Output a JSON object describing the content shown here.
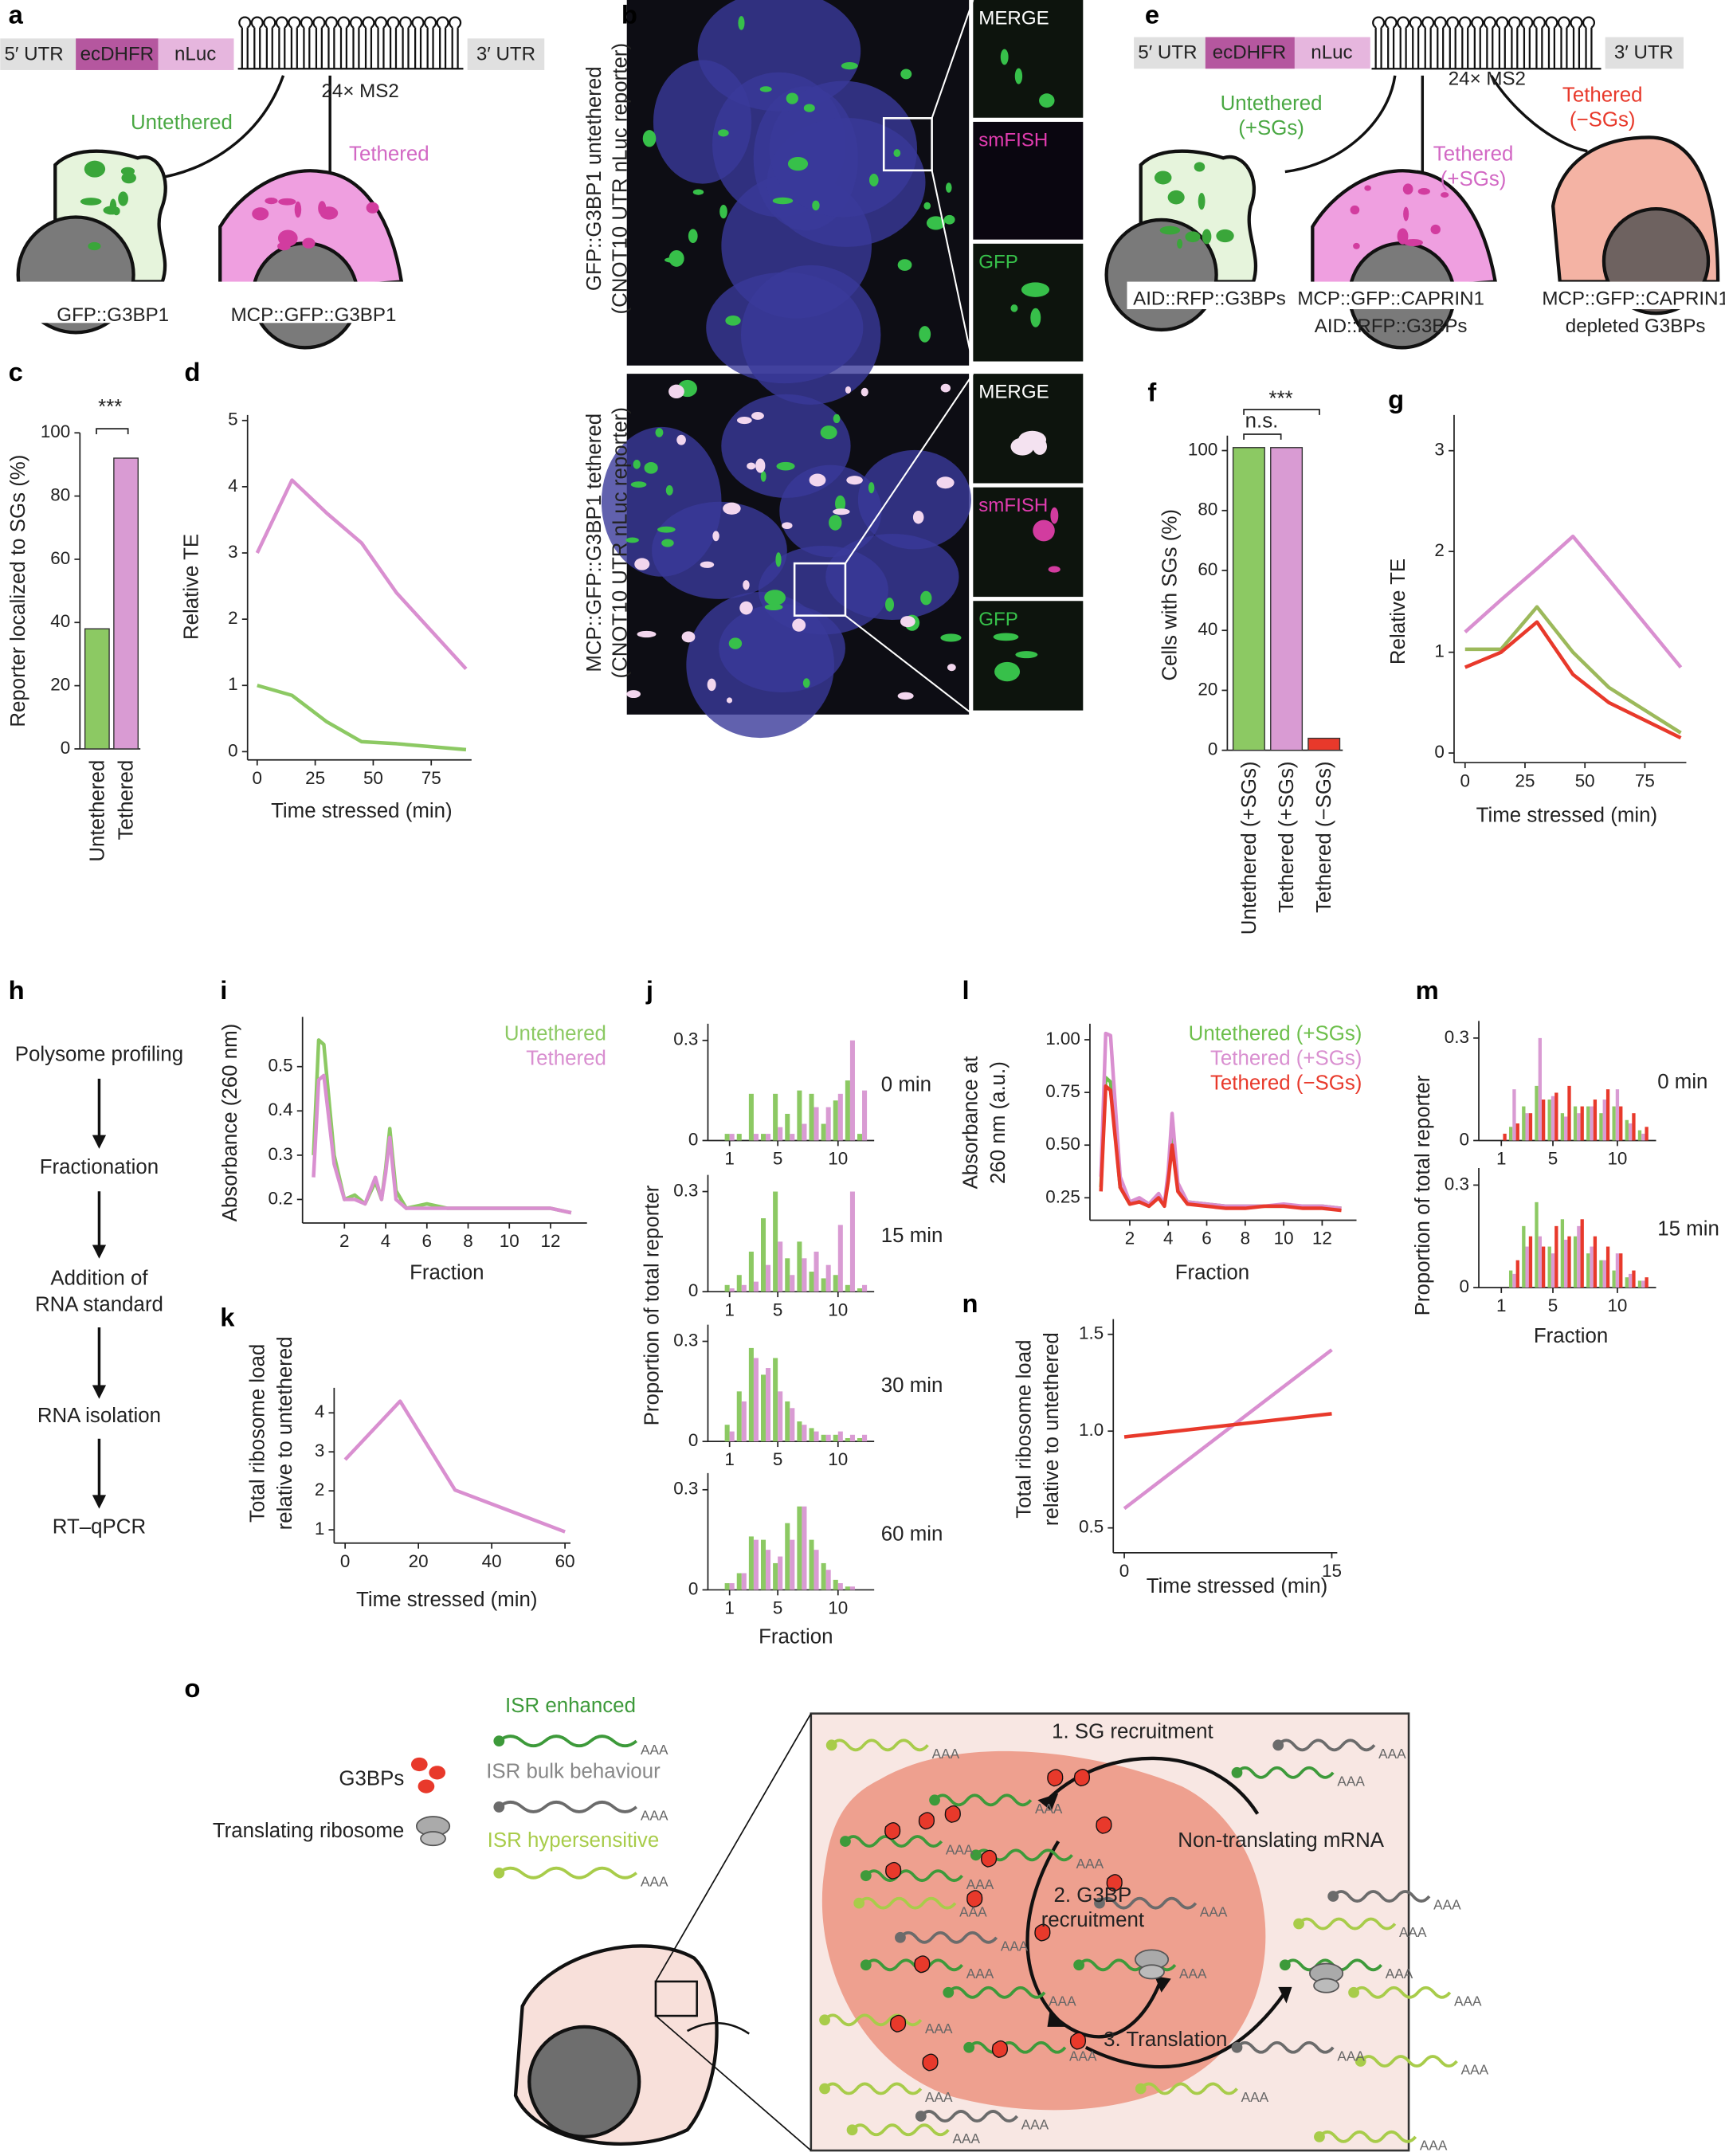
{
  "panel_labels": [
    "a",
    "b",
    "c",
    "d",
    "e",
    "f",
    "g",
    "h",
    "i",
    "j",
    "k",
    "l",
    "m",
    "n",
    "o"
  ],
  "a": {
    "utr5": "5′ UTR",
    "cds1": "ecDHFR",
    "cds2": "nLuc",
    "utr3": "3′ UTR",
    "ms2": "24× MS2",
    "untethered": "Untethered",
    "tethered": "Tethered",
    "cell1": "GFP::G3BP1",
    "cell2": "MCP::GFP::G3BP1"
  },
  "b": {
    "row_labels": [
      [
        "GFP::G3BP1 untethered",
        "(CNOT10 UTR nLuc reporter)"
      ],
      [
        "MCP::GFP::G3BP1 tethered",
        "(CNOT10 UTR nLuc reporter)"
      ]
    ],
    "channels": [
      "MERGE",
      "smFISH",
      "GFP"
    ]
  },
  "e": {
    "utr5": "5′ UTR",
    "cds1": "ecDHFR",
    "cds2": "nLuc",
    "utr3": "3′ UTR",
    "ms2": "24× MS2",
    "conditions": [
      [
        "Untethered",
        "(+SGs)"
      ],
      [
        "Tethered",
        "(+SGs)"
      ],
      [
        "Tethered",
        "(−SGs)"
      ]
    ],
    "cells": [
      [
        "AID::RFP::G3BPs"
      ],
      [
        "MCP::GFP::CAPRIN1",
        "AID::RFP::G3BPs"
      ],
      [
        "MCP::GFP::CAPRIN1",
        "depleted G3BPs"
      ]
    ]
  },
  "h": {
    "steps": [
      [
        "Polysome profiling"
      ],
      [
        "Fractionation"
      ],
      [
        "Addition of",
        "RNA standard"
      ],
      [
        "RNA isolation"
      ],
      [
        "RT–qPCR"
      ]
    ]
  },
  "o": {
    "legend": {
      "g3bps": "G3BPs",
      "ribosome": "Translating ribosome",
      "enhanced": "ISR enhanced",
      "bulk": "ISR bulk behaviour",
      "hypersensitive": "ISR hypersensitive"
    },
    "polya": "AAA",
    "steps": {
      "sg": "1. SG recruitment",
      "nontranslating": "Non-translating mRNA",
      "g3bp": [
        "2. G3BP",
        "recruitment"
      ],
      "translation": "3. Translation"
    }
  },
  "chart_data": [
    {
      "type": "bar",
      "categories": [
        "Untethered",
        "Tethered"
      ],
      "values": [
        38,
        92
      ],
      "colors": [
        "#8cc963",
        "#d99bd3"
      ],
      "ylabel": "Reporter localized to SGs (%)",
      "ylim": [
        0,
        100
      ],
      "yticks": [
        0,
        20,
        40,
        60,
        80,
        100
      ],
      "annotations": [
        "***"
      ]
    },
    {
      "type": "line",
      "xlabel": "Time stressed (min)",
      "ylabel": "Relative TE",
      "x": [
        0,
        15,
        30,
        45,
        60,
        90
      ],
      "series": [
        {
          "color": "#d98fd0",
          "values": [
            3.0,
            4.1,
            3.6,
            3.15,
            2.4,
            1.25
          ]
        },
        {
          "color": "#8cc963",
          "values": [
            1.0,
            0.85,
            0.45,
            0.15,
            0.12,
            0.03
          ]
        }
      ],
      "xlim": [
        0,
        90
      ],
      "xticks": [
        0,
        25,
        50,
        75
      ],
      "ylim": [
        0,
        5
      ],
      "yticks": [
        0,
        1,
        2,
        3,
        4,
        5
      ]
    },
    {
      "type": "bar",
      "categories": [
        "Untethered (+SGs)",
        "Tethered (+SGs)",
        "Tethered (−SGs)"
      ],
      "values": [
        101,
        101,
        4
      ],
      "colors": [
        "#8cc963",
        "#d99bd3",
        "#e8392b"
      ],
      "ylabel": "Cells with SGs (%)",
      "ylim": [
        0,
        105
      ],
      "yticks": [
        0,
        20,
        40,
        60,
        80,
        100
      ],
      "annotations": [
        "n.s.",
        "***"
      ]
    },
    {
      "type": "line",
      "xlabel": "Time stressed (min)",
      "ylabel": "Relative TE",
      "x": [
        0,
        15,
        30,
        45,
        60,
        90
      ],
      "series": [
        {
          "color": "#d98fd0",
          "values": [
            1.2,
            1.52,
            1.83,
            2.15,
            1.72,
            0.85
          ]
        },
        {
          "color": "#9cb95b",
          "values": [
            1.03,
            1.03,
            1.45,
            1.0,
            0.65,
            0.2
          ]
        },
        {
          "color": "#e8392b",
          "values": [
            0.85,
            1.0,
            1.3,
            0.78,
            0.5,
            0.15
          ]
        }
      ],
      "xlim": [
        0,
        90
      ],
      "xticks": [
        0,
        25,
        50,
        75
      ],
      "ylim": [
        0,
        3.3
      ],
      "yticks": [
        0,
        1,
        2,
        3
      ]
    },
    {
      "type": "line",
      "xlabel": "Fraction",
      "ylabel": "Absorbance (260 nm)",
      "x": [
        0.5,
        0.75,
        1,
        1.5,
        2,
        2.5,
        3,
        3.5,
        3.8,
        4,
        4.2,
        4.5,
        5,
        6,
        7,
        8,
        9,
        10,
        11,
        12,
        13
      ],
      "series": [
        {
          "name": "Untethered",
          "color": "#8cc963",
          "values": [
            0.3,
            0.56,
            0.55,
            0.3,
            0.2,
            0.21,
            0.19,
            0.24,
            0.2,
            0.27,
            0.36,
            0.22,
            0.18,
            0.19,
            0.18,
            0.18,
            0.18,
            0.18,
            0.18,
            0.18,
            0.17
          ]
        },
        {
          "name": "Tethered",
          "color": "#d98fd0",
          "values": [
            0.25,
            0.47,
            0.48,
            0.28,
            0.2,
            0.2,
            0.19,
            0.25,
            0.2,
            0.26,
            0.34,
            0.2,
            0.18,
            0.18,
            0.18,
            0.18,
            0.18,
            0.18,
            0.18,
            0.18,
            0.17
          ]
        }
      ],
      "xlim": [
        0.5,
        13.5
      ],
      "xticks": [
        2,
        4,
        6,
        8,
        10,
        12
      ],
      "ylim": [
        0.15,
        0.6
      ],
      "yticks": [
        0.2,
        0.3,
        0.4,
        0.5
      ]
    },
    {
      "type": "panels",
      "xlabel": "Fraction",
      "ylabel": "Proportion of total reporter",
      "x": [
        1,
        2,
        3,
        4,
        5,
        6,
        7,
        8,
        9,
        10,
        11,
        12
      ],
      "xlim": [
        0,
        13
      ],
      "xticks": [
        1,
        5,
        10
      ],
      "ylim": [
        0,
        0.35
      ],
      "yticks": [
        0,
        0.3
      ],
      "panels": [
        {
          "label": "0 min",
          "series": [
            {
              "color": "#8cc963",
              "values": [
                0.02,
                0.02,
                0.14,
                0.02,
                0.14,
                0.08,
                0.15,
                0.14,
                0.05,
                0.12,
                0.18,
                0.02
              ]
            },
            {
              "color": "#d99bd3",
              "values": [
                0.02,
                0.0,
                0.02,
                0.02,
                0.04,
                0.02,
                0.05,
                0.1,
                0.1,
                0.14,
                0.3,
                0.15
              ]
            }
          ]
        },
        {
          "label": "15 min",
          "series": [
            {
              "color": "#8cc963",
              "values": [
                0.02,
                0.05,
                0.12,
                0.22,
                0.3,
                0.1,
                0.15,
                0.06,
                0.04,
                0.05,
                0.02,
                0.01
              ]
            },
            {
              "color": "#d99bd3",
              "values": [
                0.01,
                0.02,
                0.03,
                0.08,
                0.15,
                0.05,
                0.1,
                0.12,
                0.08,
                0.2,
                0.3,
                0.02
              ]
            }
          ]
        },
        {
          "label": "30 min",
          "series": [
            {
              "color": "#8cc963",
              "values": [
                0.05,
                0.15,
                0.28,
                0.2,
                0.25,
                0.12,
                0.06,
                0.04,
                0.02,
                0.02,
                0.01,
                0.01
              ]
            },
            {
              "color": "#d99bd3",
              "values": [
                0.03,
                0.12,
                0.25,
                0.22,
                0.15,
                0.1,
                0.05,
                0.03,
                0.02,
                0.03,
                0.02,
                0.02
              ]
            }
          ]
        },
        {
          "label": "60 min",
          "series": [
            {
              "color": "#8cc963",
              "values": [
                0.02,
                0.05,
                0.16,
                0.15,
                0.08,
                0.2,
                0.25,
                0.15,
                0.08,
                0.03,
                0.01,
                0.0
              ]
            },
            {
              "color": "#d99bd3",
              "values": [
                0.02,
                0.05,
                0.15,
                0.12,
                0.1,
                0.15,
                0.25,
                0.12,
                0.06,
                0.02,
                0.01,
                0.0
              ]
            }
          ]
        }
      ]
    },
    {
      "type": "line",
      "xlabel": "Time stressed (min)",
      "ylabel": [
        "Total ribosome load",
        "relative to untethered"
      ],
      "x": [
        0,
        15,
        30,
        60
      ],
      "series": [
        {
          "color": "#d98fd0",
          "values": [
            2.8,
            4.3,
            2.02,
            0.95
          ]
        }
      ],
      "xlim": [
        0,
        60
      ],
      "xticks": [
        0,
        20,
        40,
        60
      ],
      "ylim": [
        0.8,
        4.5
      ],
      "yticks": [
        1,
        2,
        3,
        4
      ]
    },
    {
      "type": "line",
      "xlabel": "Fraction",
      "ylabel": [
        "Absorbance at",
        "260 nm (a.u.)"
      ],
      "x": [
        0.5,
        0.75,
        1,
        1.5,
        2,
        2.5,
        3,
        3.5,
        3.8,
        4,
        4.2,
        4.5,
        5,
        6,
        7,
        8,
        9,
        10,
        11,
        12,
        13
      ],
      "series": [
        {
          "name": "Untethered (+SGs)",
          "color": "#6dbf4b",
          "values": [
            0.3,
            0.82,
            0.8,
            0.3,
            0.22,
            0.24,
            0.21,
            0.26,
            0.22,
            0.35,
            0.6,
            0.3,
            0.23,
            0.22,
            0.21,
            0.21,
            0.21,
            0.21,
            0.21,
            0.21,
            0.2
          ]
        },
        {
          "name": "Tethered (+SGs)",
          "color": "#d98fd0",
          "values": [
            0.35,
            1.03,
            1.02,
            0.35,
            0.23,
            0.25,
            0.22,
            0.27,
            0.22,
            0.38,
            0.65,
            0.32,
            0.23,
            0.22,
            0.21,
            0.21,
            0.21,
            0.22,
            0.21,
            0.21,
            0.2
          ]
        },
        {
          "name": "Tethered (−SGs)",
          "color": "#e8392b",
          "values": [
            0.28,
            0.78,
            0.76,
            0.3,
            0.22,
            0.23,
            0.21,
            0.25,
            0.21,
            0.33,
            0.5,
            0.28,
            0.22,
            0.21,
            0.2,
            0.2,
            0.21,
            0.21,
            0.2,
            0.2,
            0.19
          ]
        }
      ],
      "xlim": [
        0.5,
        13.5
      ],
      "xticks": [
        2,
        4,
        6,
        8,
        10,
        12
      ],
      "ylim": [
        0.15,
        1.05
      ],
      "yticks": [
        {
          "value": 0.25,
          "label": "0.25"
        },
        {
          "value": 0.5,
          "label": "0.50"
        },
        {
          "value": 0.75,
          "label": "0.75"
        },
        {
          "value": 1,
          "label": "1.00"
        }
      ]
    },
    {
      "type": "panels",
      "xlabel": "Fraction",
      "ylabel": "Proportion of total reporter",
      "x": [
        1,
        2,
        3,
        4,
        5,
        6,
        7,
        8,
        9,
        10,
        11,
        12
      ],
      "xlim": [
        0,
        13
      ],
      "xticks": [
        1,
        5,
        10
      ],
      "ylim": [
        0,
        0.35
      ],
      "yticks": [
        0,
        0.3
      ],
      "panels": [
        {
          "label": "0 min",
          "series": [
            {
              "color": "#8cc963",
              "values": [
                0.0,
                0.04,
                0.1,
                0.16,
                0.12,
                0.08,
                0.1,
                0.1,
                0.08,
                0.1,
                0.06,
                0.03
              ]
            },
            {
              "color": "#d99bd3",
              "values": [
                0.0,
                0.15,
                0.08,
                0.3,
                0.13,
                0.07,
                0.08,
                0.1,
                0.12,
                0.15,
                0.05,
                0.02
              ]
            },
            {
              "color": "#e8392b",
              "values": [
                0.02,
                0.05,
                0.08,
                0.12,
                0.14,
                0.16,
                0.1,
                0.12,
                0.15,
                0.1,
                0.08,
                0.04
              ]
            }
          ]
        },
        {
          "label": "15 min",
          "series": [
            {
              "color": "#8cc963",
              "values": [
                0.0,
                0.05,
                0.18,
                0.25,
                0.12,
                0.2,
                0.15,
                0.1,
                0.08,
                0.05,
                0.03,
                0.02
              ]
            },
            {
              "color": "#d99bd3",
              "values": [
                0.0,
                0.04,
                0.12,
                0.15,
                0.1,
                0.14,
                0.18,
                0.12,
                0.08,
                0.1,
                0.04,
                0.02
              ]
            },
            {
              "color": "#e8392b",
              "values": [
                0.0,
                0.08,
                0.15,
                0.12,
                0.18,
                0.15,
                0.2,
                0.15,
                0.12,
                0.1,
                0.05,
                0.03
              ]
            }
          ]
        }
      ]
    },
    {
      "type": "line",
      "xlabel": "Time stressed (min)",
      "ylabel": [
        "Total ribosome load",
        "relative to untethered"
      ],
      "x": [
        0,
        15
      ],
      "series": [
        {
          "color": "#d98fd0",
          "values": [
            0.6,
            1.42
          ]
        },
        {
          "color": "#e8392b",
          "values": [
            0.97,
            1.09
          ]
        }
      ],
      "xlim": [
        0,
        15
      ],
      "xticks": [
        0,
        15
      ],
      "ylim": [
        0.4,
        1.55
      ],
      "yticks": [
        {
          "value": 0.5,
          "label": "0.5"
        },
        {
          "value": 1,
          "label": "1.0"
        },
        {
          "value": 1.5,
          "label": "1.5"
        }
      ]
    }
  ]
}
